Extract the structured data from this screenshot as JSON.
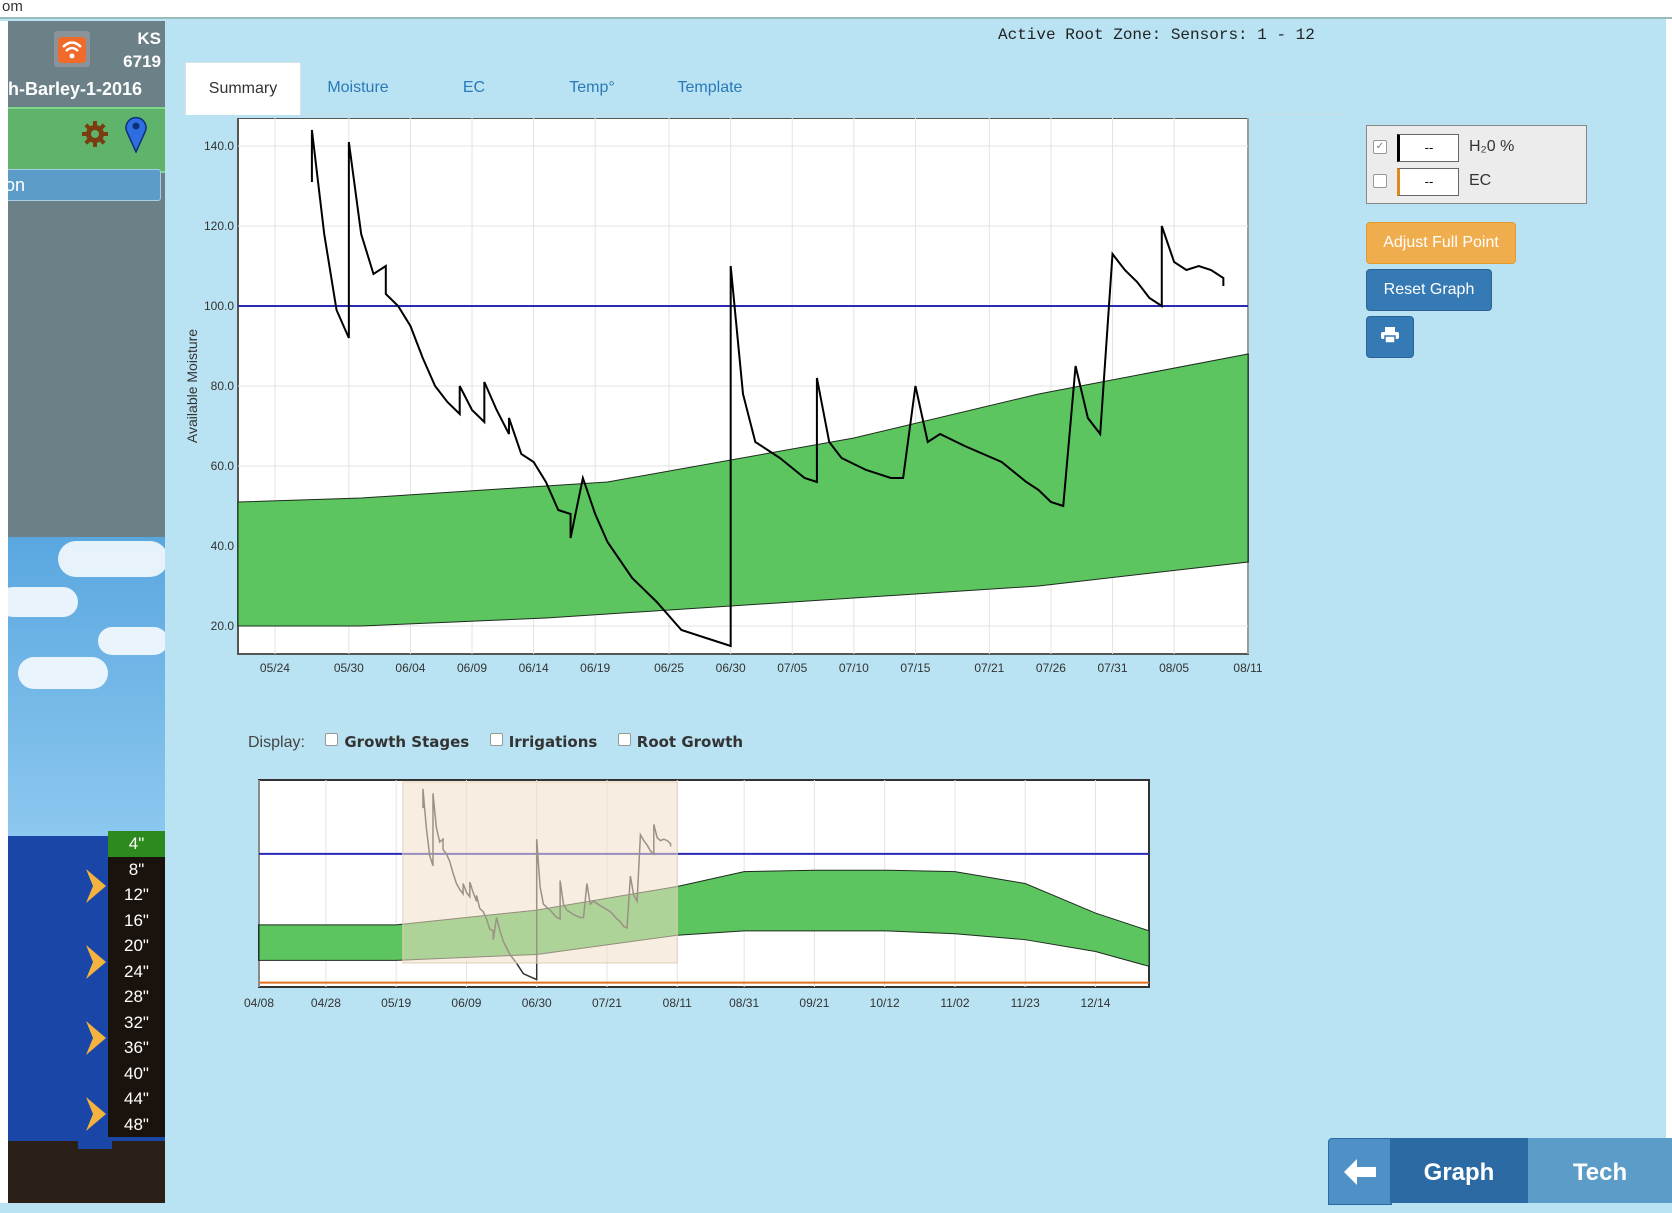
{
  "browser": {
    "url_fragment": "om"
  },
  "sidebar": {
    "site_state": "KS",
    "site_number": "6719",
    "field_name": "h-Barley-1-2016",
    "action_button": "on",
    "depths": [
      "4\"",
      "8\"",
      "12\"",
      "16\"",
      "20\"",
      "24\"",
      "28\"",
      "32\"",
      "36\"",
      "40\"",
      "44\"",
      "48\""
    ]
  },
  "header": {
    "zone_label": "Active Root Zone: Sensors: 1 - 12"
  },
  "tabs": [
    "Summary",
    "Moisture",
    "EC",
    "Temp°",
    "Template"
  ],
  "legend": {
    "items": [
      {
        "value": "--",
        "name": "H₂0 %",
        "checked": true,
        "color": "#000000"
      },
      {
        "value": "--",
        "name": "EC",
        "checked": false,
        "color": "#e08a1e"
      }
    ]
  },
  "buttons": {
    "adjust": "Adjust Full Point",
    "reset": "Reset Graph",
    "print_icon": "print-icon"
  },
  "display": {
    "label": "Display:",
    "options": [
      "Growth Stages",
      "Irrigations",
      "Root Growth"
    ]
  },
  "bottom_nav": {
    "back_icon": "arrow-left-icon",
    "graph": "Graph",
    "tech": "Tech"
  },
  "chart_data": [
    {
      "type": "line",
      "ylabel": "Available Moisture",
      "ylim": [
        13,
        147
      ],
      "yticks": [
        "20.0",
        "40.0",
        "60.0",
        "80.0",
        "100.0",
        "120.0",
        "140.0"
      ],
      "xticks": [
        "05/24",
        "05/30",
        "06/04",
        "06/09",
        "06/14",
        "06/19",
        "06/25",
        "06/30",
        "07/05",
        "07/10",
        "07/15",
        "07/21",
        "07/26",
        "07/31",
        "08/05",
        "08/11"
      ],
      "x_start": "05/21",
      "x_end": "08/11",
      "full_point": 100,
      "band_upper": [
        [
          "05/21",
          51
        ],
        [
          "05/31",
          52
        ],
        [
          "06/15",
          55
        ],
        [
          "06/20",
          56
        ],
        [
          "07/10",
          67
        ],
        [
          "07/25",
          78
        ],
        [
          "08/11",
          88
        ]
      ],
      "band_lower": [
        [
          "05/21",
          20
        ],
        [
          "05/31",
          20
        ],
        [
          "06/15",
          22
        ],
        [
          "06/30",
          25
        ],
        [
          "07/15",
          28
        ],
        [
          "07/25",
          30
        ],
        [
          "08/11",
          36
        ]
      ],
      "series": [
        {
          "color": "#000000",
          "points": [
            [
              "05/27",
              131
            ],
            [
              "05/27",
              144
            ],
            [
              "05/28",
              118
            ],
            [
              "05/29",
              99
            ],
            [
              "05/30",
              92
            ],
            [
              "05/30",
              141
            ],
            [
              "05/31",
              118
            ],
            [
              "06/01",
              108
            ],
            [
              "06/02",
              110
            ],
            [
              "06/02",
              103
            ],
            [
              "06/03",
              100
            ],
            [
              "06/04",
              95
            ],
            [
              "06/05",
              87
            ],
            [
              "06/06",
              80
            ],
            [
              "06/07",
              76
            ],
            [
              "06/08",
              73
            ],
            [
              "06/08",
              80
            ],
            [
              "06/09",
              74
            ],
            [
              "06/10",
              71
            ],
            [
              "06/10",
              81
            ],
            [
              "06/11",
              74
            ],
            [
              "06/12",
              68
            ],
            [
              "06/12",
              72
            ],
            [
              "06/13",
              63
            ],
            [
              "06/14",
              61
            ],
            [
              "06/15",
              56
            ],
            [
              "06/16",
              49
            ],
            [
              "06/17",
              48
            ],
            [
              "06/17",
              42
            ],
            [
              "06/18",
              57
            ],
            [
              "06/19",
              48
            ],
            [
              "06/20",
              41
            ],
            [
              "06/22",
              32
            ],
            [
              "06/24",
              26
            ],
            [
              "06/26",
              19
            ],
            [
              "06/28",
              17
            ],
            [
              "06/30",
              15
            ],
            [
              "06/30",
              110
            ],
            [
              "07/01",
              78
            ],
            [
              "07/02",
              66
            ],
            [
              "07/03",
              64
            ],
            [
              "07/04",
              62
            ],
            [
              "07/06",
              57
            ],
            [
              "07/07",
              56
            ],
            [
              "07/07",
              82
            ],
            [
              "07/08",
              66
            ],
            [
              "07/09",
              62
            ],
            [
              "07/11",
              59
            ],
            [
              "07/13",
              57
            ],
            [
              "07/14",
              57
            ],
            [
              "07/15",
              80
            ],
            [
              "07/16",
              66
            ],
            [
              "07/17",
              68
            ],
            [
              "07/19",
              65
            ],
            [
              "07/22",
              61
            ],
            [
              "07/24",
              56
            ],
            [
              "07/25",
              54
            ],
            [
              "07/26",
              51
            ],
            [
              "07/27",
              50
            ],
            [
              "07/28",
              85
            ],
            [
              "07/29",
              72
            ],
            [
              "07/30",
              68
            ],
            [
              "07/31",
              113
            ],
            [
              "08/01",
              109
            ],
            [
              "08/02",
              106
            ],
            [
              "08/03",
              102
            ],
            [
              "08/04",
              100
            ],
            [
              "08/04",
              120
            ],
            [
              "08/05",
              111
            ],
            [
              "08/06",
              109
            ],
            [
              "08/07",
              110
            ],
            [
              "08/08",
              109
            ],
            [
              "08/09",
              107
            ],
            [
              "08/09",
              105
            ]
          ]
        }
      ]
    },
    {
      "type": "area",
      "role": "navigator",
      "xticks": [
        "04/08",
        "04/28",
        "05/19",
        "06/09",
        "06/30",
        "07/21",
        "08/11",
        "08/31",
        "09/21",
        "10/12",
        "11/02",
        "11/23",
        "12/14"
      ],
      "x_start": "04/08",
      "x_end": "12/30",
      "ylim": [
        10,
        150
      ],
      "full_point": 100,
      "selected_range": [
        "05/21",
        "08/11"
      ],
      "baseline": 13,
      "band_upper": [
        [
          "04/08",
          52
        ],
        [
          "05/19",
          52
        ],
        [
          "06/30",
          62
        ],
        [
          "08/11",
          78
        ],
        [
          "08/31",
          88
        ],
        [
          "09/21",
          89
        ],
        [
          "10/12",
          89
        ],
        [
          "11/02",
          88
        ],
        [
          "11/23",
          80
        ],
        [
          "12/14",
          60
        ],
        [
          "12/30",
          48
        ]
      ],
      "band_lower": [
        [
          "04/08",
          28
        ],
        [
          "05/19",
          28
        ],
        [
          "06/30",
          32
        ],
        [
          "08/11",
          45
        ],
        [
          "08/31",
          48
        ],
        [
          "09/21",
          48
        ],
        [
          "10/12",
          48
        ],
        [
          "11/02",
          46
        ],
        [
          "11/23",
          42
        ],
        [
          "12/14",
          34
        ],
        [
          "12/30",
          24
        ]
      ],
      "series_color": "#333333"
    }
  ]
}
